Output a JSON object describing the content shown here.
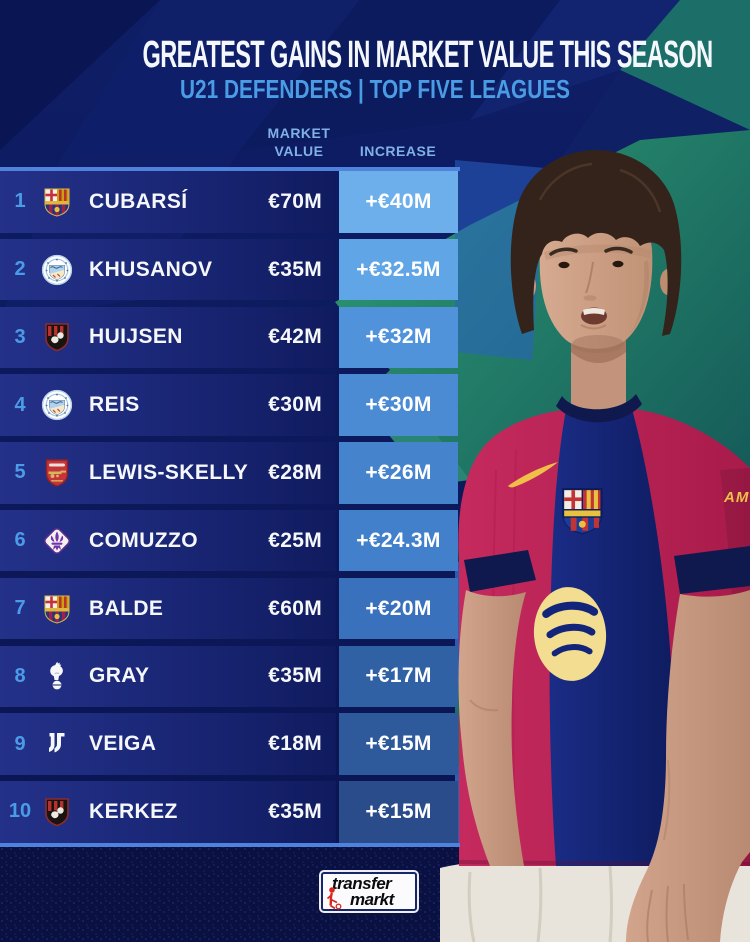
{
  "header": {
    "title": "GREATEST GAINS IN MARKET VALUE THIS SEASON",
    "subtitle": "U21 DEFENDERS | TOP FIVE LEAGUES"
  },
  "columns": {
    "market_value_line1": "MARKET",
    "market_value_line2": "VALUE",
    "increase": "INCREASE"
  },
  "rows": [
    {
      "rank": "1",
      "club": "fc-barcelona",
      "player": "CUBARSÍ",
      "market_value": "€70M",
      "increase": "+€40M",
      "increase_color": "#6DAFEB"
    },
    {
      "rank": "2",
      "club": "manchester-city",
      "player": "KHUSANOV",
      "market_value": "€35M",
      "increase": "+€32.5M",
      "increase_color": "#60A5E6"
    },
    {
      "rank": "3",
      "club": "afc-bournemouth",
      "player": "HUIJSEN",
      "market_value": "€42M",
      "increase": "+€32M",
      "increase_color": "#5093DB"
    },
    {
      "rank": "4",
      "club": "manchester-city",
      "player": "REIS",
      "market_value": "€30M",
      "increase": "+€30M",
      "increase_color": "#4B8BD4"
    },
    {
      "rank": "5",
      "club": "arsenal",
      "player": "LEWIS-SKELLY",
      "market_value": "€28M",
      "increase": "+€26M",
      "increase_color": "#4583CD"
    },
    {
      "rank": "6",
      "club": "fiorentina",
      "player": "COMUZZO",
      "market_value": "€25M",
      "increase": "+€24.3M",
      "increase_color": "#4380CB"
    },
    {
      "rank": "7",
      "club": "fc-barcelona",
      "player": "BALDE",
      "market_value": "€60M",
      "increase": "+€20M",
      "increase_color": "#3A71BC"
    },
    {
      "rank": "8",
      "club": "tottenham",
      "player": "GRAY",
      "market_value": "€35M",
      "increase": "+€17M",
      "increase_color": "#3161A5"
    },
    {
      "rank": "9",
      "club": "juventus",
      "player": "VEIGA",
      "market_value": "€18M",
      "increase": "+€15M",
      "increase_color": "#2E599B"
    },
    {
      "rank": "10",
      "club": "afc-bournemouth",
      "player": "KERKEZ",
      "market_value": "€35M",
      "increase": "+€15M",
      "increase_color": "#2B4C8B"
    }
  ],
  "footer": {
    "brand_line1": "transfer",
    "brand_line2": "markt"
  },
  "colors": {
    "accent_blue": "#4C9BE8",
    "label_blue": "#7FB0E6",
    "row_gradient_left": "#243189",
    "row_gradient_right": "#101B5F",
    "table_edge_line": "#4E82DC"
  }
}
